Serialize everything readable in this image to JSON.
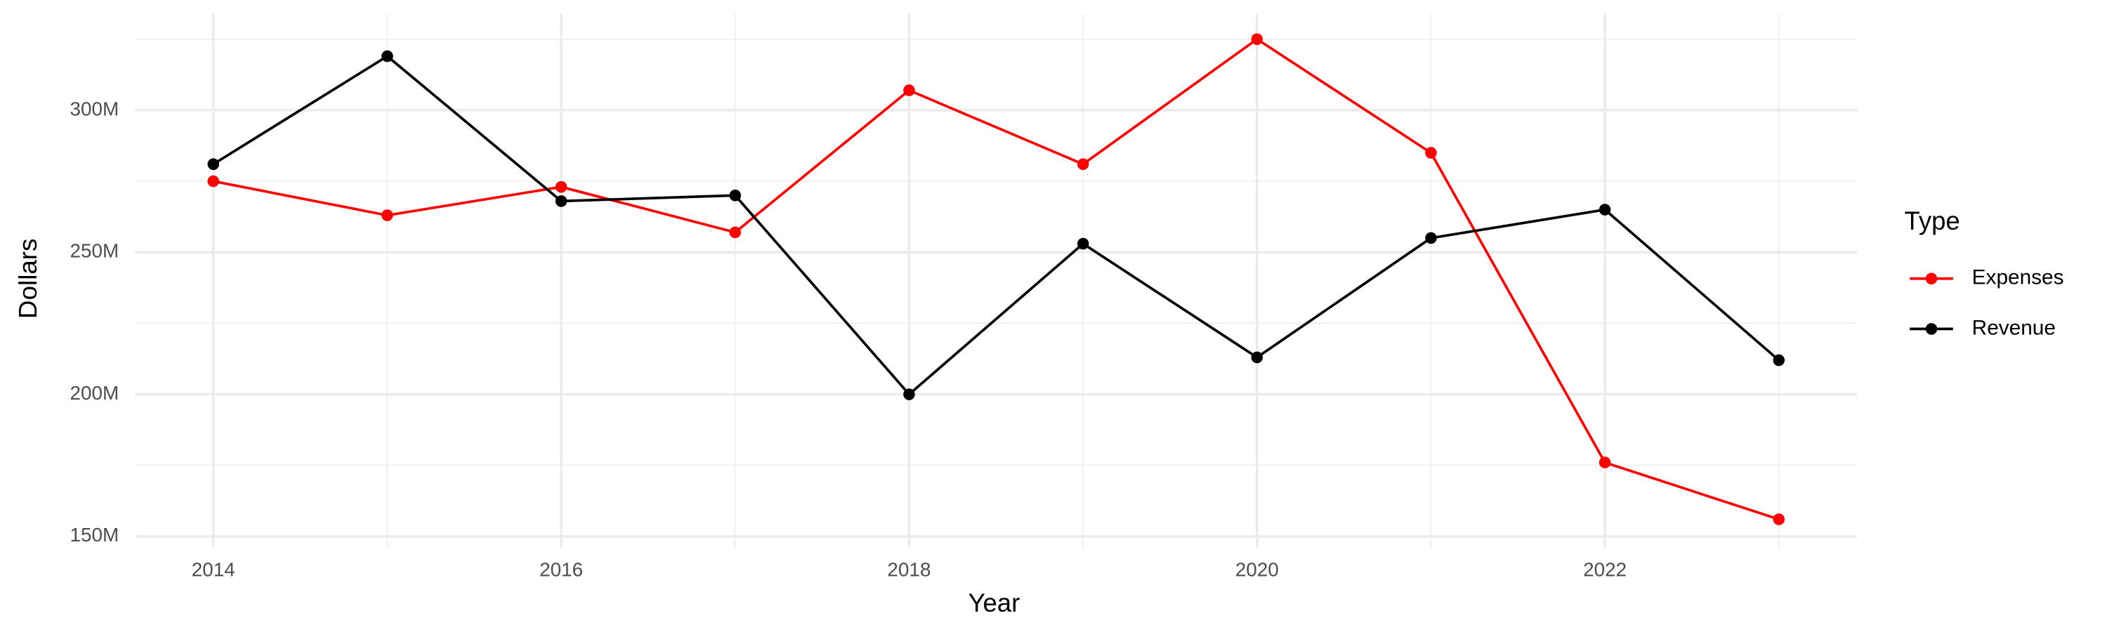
{
  "chart_data": {
    "type": "line",
    "x_label": "Year",
    "y_label": "Dollars",
    "x": [
      2014,
      2015,
      2016,
      2017,
      2018,
      2019,
      2020,
      2021,
      2022,
      2023
    ],
    "series": [
      {
        "name": "Expenses",
        "color": "#ff0000",
        "values": [
          275000000,
          263000000,
          273000000,
          257000000,
          307000000,
          281000000,
          325000000,
          285000000,
          176000000,
          156000000
        ]
      },
      {
        "name": "Revenue",
        "color": "#000000",
        "values": [
          281000000,
          319000000,
          268000000,
          270000000,
          200000000,
          253000000,
          213000000,
          255000000,
          265000000,
          212000000
        ]
      }
    ],
    "xlim": [
      2013.55,
      2023.45
    ],
    "xticks": [
      2014,
      2016,
      2018,
      2020,
      2022
    ],
    "ylim": [
      146000000,
      334000000
    ],
    "yticks": [
      {
        "value": 150000000,
        "label": "150M"
      },
      {
        "value": 200000000,
        "label": "200M"
      },
      {
        "value": 250000000,
        "label": "250M"
      },
      {
        "value": 300000000,
        "label": "300M"
      }
    ],
    "grid": true,
    "legend_title": "Type",
    "legend_position": "right"
  }
}
